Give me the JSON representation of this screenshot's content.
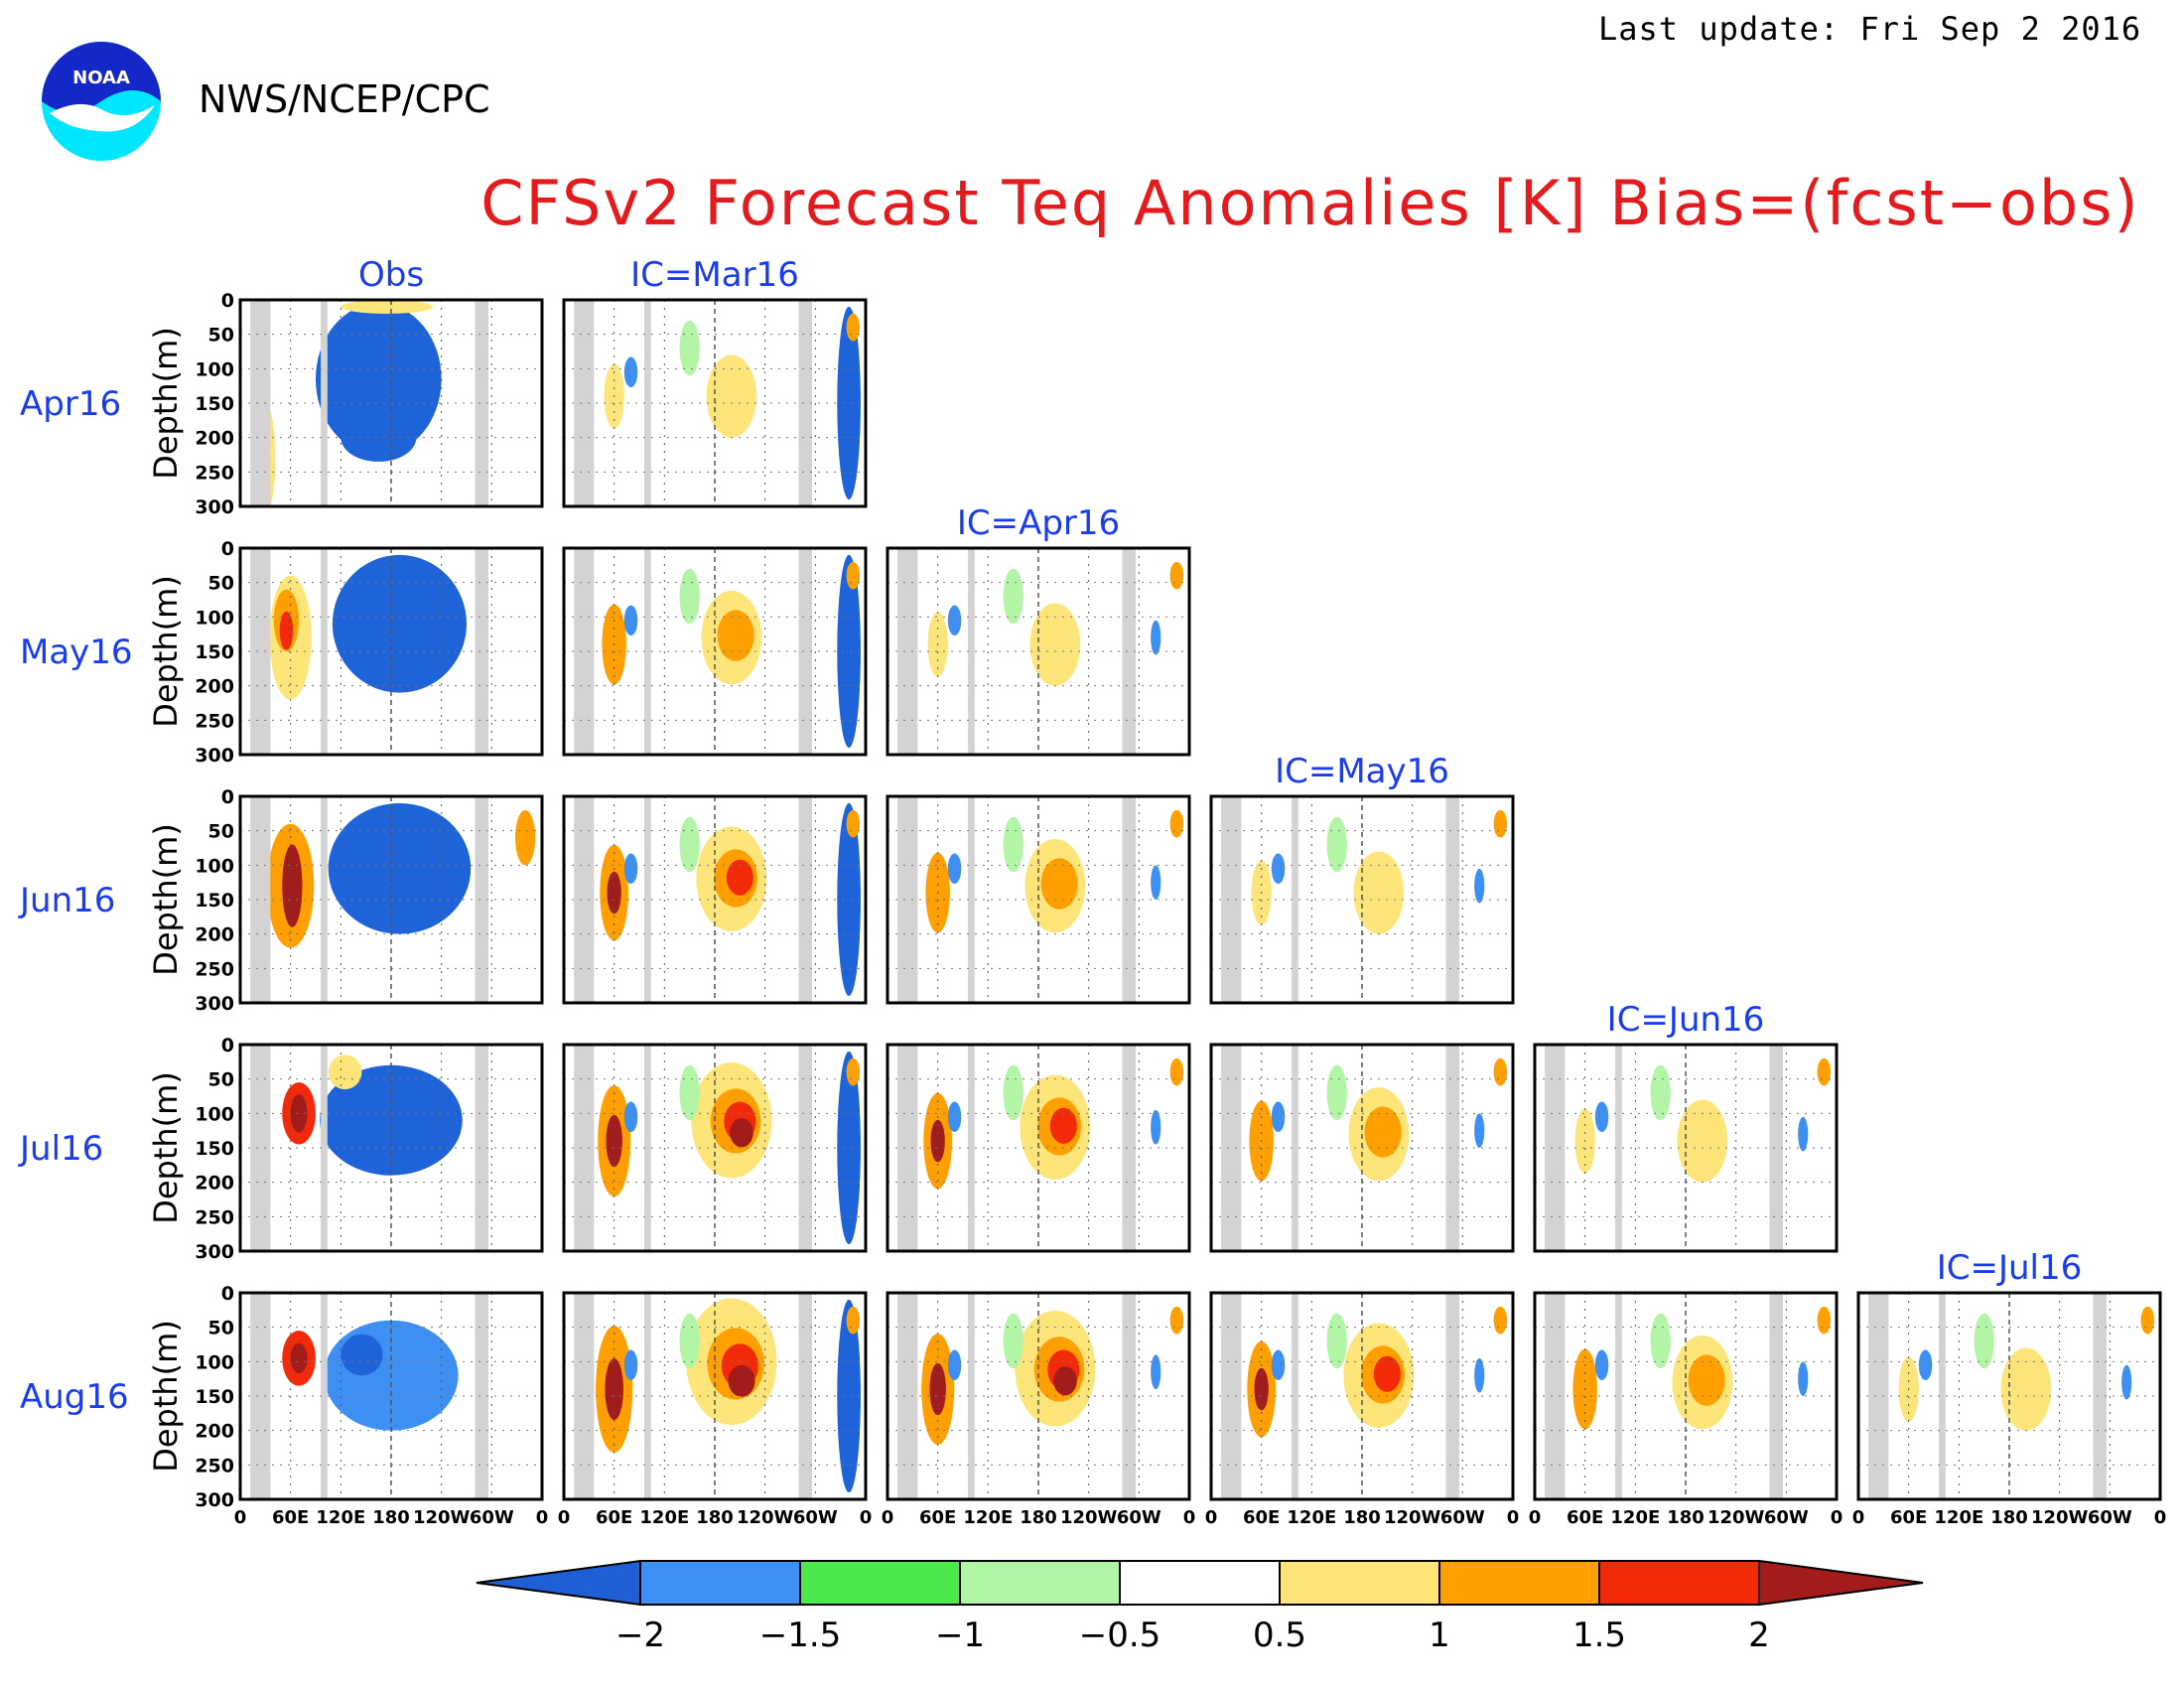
{
  "header": {
    "agency": "NWS/NCEP/CPC",
    "last_update": "Last update: Fri Sep  2 2016",
    "logo_text": "NOAA"
  },
  "chart_data": {
    "type": "heatmap",
    "title": "CFSv2 Forecast Teq Anomalies [K] Bias=(fcst−obs)",
    "ylabel": "Depth(m)",
    "y_ticks": [
      "0",
      "50",
      "100",
      "150",
      "200",
      "250",
      "300"
    ],
    "ylim": [
      300,
      0
    ],
    "x_ticks": [
      "0",
      "60E",
      "120E",
      "180",
      "120W",
      "60W",
      "0"
    ],
    "columns": [
      "Obs",
      "IC=Mar16",
      "IC=Apr16",
      "IC=May16",
      "IC=Jun16",
      "IC=Jul16"
    ],
    "rows": [
      "Apr16",
      "May16",
      "Jun16",
      "Jul16",
      "Aug16"
    ],
    "colorbar": {
      "levels": [
        "−2",
        "−1.5",
        "−1",
        "−0.5",
        "0.5",
        "1",
        "1.5",
        "2"
      ],
      "colors": [
        "#1e5fd6",
        "#3d8ff2",
        "#4ce84c",
        "#b3f5a6",
        "#ffffff",
        "#fde57a",
        "#ff9f00",
        "#f22a0a",
        "#a31c1c"
      ]
    },
    "palette": {
      "deep_blue": "#1e64d8",
      "blue": "#3d8ff2",
      "green": "#4ce84c",
      "light_green": "#b3f5a6",
      "yellow": "#fde57a",
      "orange": "#ff9f00",
      "red": "#f22a0a",
      "dark_red": "#a31c1c",
      "land": "#d3d3d3"
    }
  }
}
